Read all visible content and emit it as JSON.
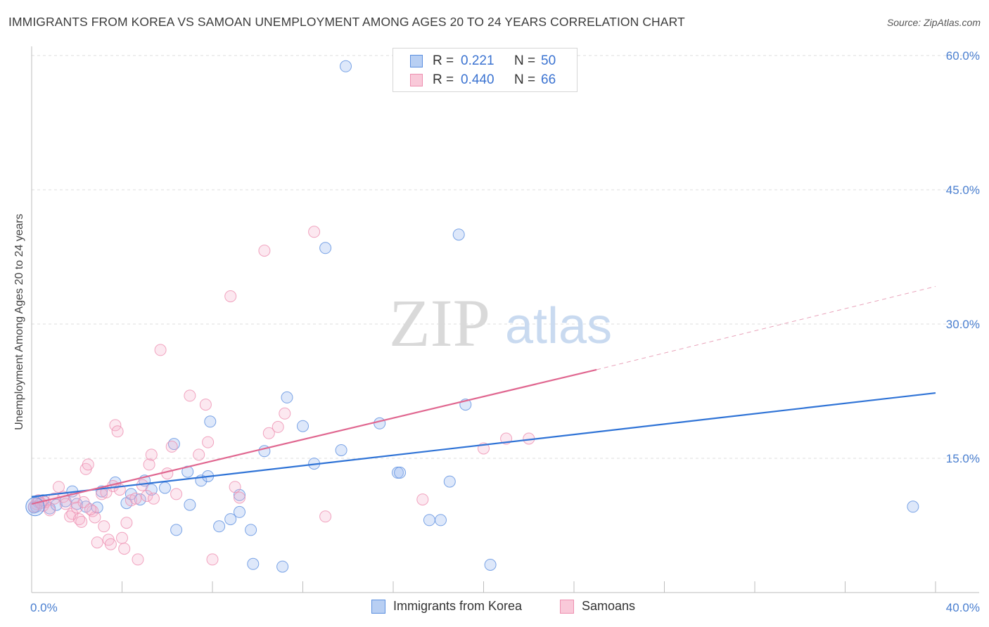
{
  "header": {
    "title": "IMMIGRANTS FROM KOREA VS SAMOAN UNEMPLOYMENT AMONG AGES 20 TO 24 YEARS CORRELATION CHART",
    "source": "Source: ZipAtlas.com"
  },
  "watermark": {
    "zip": "ZIP",
    "atlas": "atlas"
  },
  "legend": {
    "rows": [
      {
        "r_label": "R =",
        "r_value": "0.221",
        "n_label": "N =",
        "n_value": "50"
      },
      {
        "r_label": "R =",
        "r_value": "0.440",
        "n_label": "N =",
        "n_value": "66"
      }
    ],
    "series": [
      {
        "name": "Immigrants from Korea",
        "color": "#5b8fe0"
      },
      {
        "name": "Samoans",
        "color": "#ee8fb0"
      }
    ]
  },
  "chart_data": {
    "type": "scatter",
    "title": "IMMIGRANTS FROM KOREA VS SAMOAN UNEMPLOYMENT AMONG AGES 20 TO 24 YEARS CORRELATION CHART",
    "xlabel": "",
    "ylabel": "Unemployment Among Ages 20 to 24 years",
    "xlim": [
      0,
      40
    ],
    "ylim": [
      0,
      60
    ],
    "x_tick_labels": [
      "0.0%",
      "40.0%"
    ],
    "y_ticks": [
      15,
      30,
      45,
      60
    ],
    "y_tick_labels": [
      "15.0%",
      "30.0%",
      "45.0%",
      "60.0%"
    ],
    "grid": true,
    "series": [
      {
        "name": "Immigrants from Korea",
        "color": "#5b8fe0",
        "trend": {
          "x0": 0,
          "y0": 10.7,
          "x1": 40,
          "y1": 22.3
        },
        "points": [
          [
            0.2,
            9.6
          ],
          [
            0.3,
            10.1
          ],
          [
            0.5,
            10.3
          ],
          [
            0.8,
            9.4
          ],
          [
            1.1,
            9.8
          ],
          [
            1.5,
            10.2
          ],
          [
            1.8,
            11.3
          ],
          [
            2.0,
            9.9
          ],
          [
            2.4,
            9.6
          ],
          [
            2.9,
            9.5
          ],
          [
            3.1,
            11.3
          ],
          [
            3.7,
            12.3
          ],
          [
            4.2,
            10.0
          ],
          [
            4.4,
            11.0
          ],
          [
            4.8,
            10.4
          ],
          [
            5.0,
            12.5
          ],
          [
            5.3,
            11.5
          ],
          [
            5.9,
            11.7
          ],
          [
            6.3,
            16.6
          ],
          [
            6.4,
            7.0
          ],
          [
            6.9,
            13.5
          ],
          [
            7.0,
            9.8
          ],
          [
            7.5,
            12.5
          ],
          [
            7.8,
            13.0
          ],
          [
            7.9,
            19.1
          ],
          [
            8.3,
            7.4
          ],
          [
            8.8,
            8.2
          ],
          [
            9.2,
            9.0
          ],
          [
            9.2,
            10.9
          ],
          [
            9.7,
            7.0
          ],
          [
            9.8,
            3.2
          ],
          [
            10.3,
            15.8
          ],
          [
            11.1,
            2.9
          ],
          [
            11.3,
            21.8
          ],
          [
            12.0,
            18.6
          ],
          [
            12.5,
            14.4
          ],
          [
            13.0,
            38.5
          ],
          [
            13.7,
            15.9
          ],
          [
            13.9,
            58.8
          ],
          [
            15.4,
            18.9
          ],
          [
            16.2,
            13.4
          ],
          [
            16.3,
            13.4
          ],
          [
            17.6,
            8.1
          ],
          [
            18.1,
            8.1
          ],
          [
            18.5,
            12.4
          ],
          [
            18.9,
            40.0
          ],
          [
            19.2,
            21.0
          ],
          [
            20.3,
            3.1
          ],
          [
            39.0,
            9.6
          ],
          [
            0.1,
            9.5
          ]
        ]
      },
      {
        "name": "Samoans",
        "color": "#ee8fb0",
        "trend": {
          "x0": 0,
          "y0": 9.9,
          "x1": 25,
          "y1": 24.9,
          "dash_x1": 40,
          "dash_y1": 34.2
        },
        "points": [
          [
            0.2,
            9.9
          ],
          [
            0.3,
            10.3
          ],
          [
            0.5,
            9.7
          ],
          [
            0.6,
            10.1
          ],
          [
            0.8,
            9.2
          ],
          [
            1.0,
            10.5
          ],
          [
            1.2,
            11.8
          ],
          [
            1.4,
            10.7
          ],
          [
            1.5,
            9.9
          ],
          [
            1.7,
            8.5
          ],
          [
            1.8,
            8.8
          ],
          [
            2.0,
            9.5
          ],
          [
            2.1,
            8.2
          ],
          [
            2.2,
            7.9
          ],
          [
            2.3,
            10.1
          ],
          [
            2.4,
            13.8
          ],
          [
            2.5,
            14.3
          ],
          [
            2.7,
            9.1
          ],
          [
            2.8,
            8.4
          ],
          [
            2.9,
            5.6
          ],
          [
            3.1,
            11.0
          ],
          [
            3.2,
            7.4
          ],
          [
            3.3,
            11.2
          ],
          [
            3.4,
            5.9
          ],
          [
            3.5,
            5.4
          ],
          [
            3.6,
            11.9
          ],
          [
            3.7,
            18.7
          ],
          [
            3.8,
            18.0
          ],
          [
            3.9,
            11.5
          ],
          [
            4.0,
            6.1
          ],
          [
            4.1,
            4.9
          ],
          [
            4.2,
            7.8
          ],
          [
            4.4,
            10.3
          ],
          [
            4.6,
            10.5
          ],
          [
            4.7,
            3.7
          ],
          [
            4.9,
            12.0
          ],
          [
            5.1,
            10.8
          ],
          [
            5.2,
            14.3
          ],
          [
            5.3,
            15.4
          ],
          [
            5.4,
            10.5
          ],
          [
            5.7,
            27.1
          ],
          [
            6.0,
            13.3
          ],
          [
            6.2,
            16.3
          ],
          [
            6.4,
            11.0
          ],
          [
            7.0,
            22.0
          ],
          [
            7.4,
            15.4
          ],
          [
            7.7,
            21.0
          ],
          [
            7.8,
            16.8
          ],
          [
            8.0,
            3.7
          ],
          [
            8.8,
            33.1
          ],
          [
            9.0,
            11.8
          ],
          [
            9.2,
            10.6
          ],
          [
            10.3,
            38.2
          ],
          [
            10.5,
            17.8
          ],
          [
            10.9,
            18.5
          ],
          [
            11.2,
            20.0
          ],
          [
            12.5,
            40.3
          ],
          [
            13.0,
            8.5
          ],
          [
            17.3,
            10.4
          ],
          [
            20.0,
            16.1
          ],
          [
            21.0,
            17.2
          ],
          [
            22.0,
            17.2
          ],
          [
            0.1,
            9.6
          ],
          [
            0.4,
            10.0
          ],
          [
            1.9,
            10.6
          ],
          [
            2.6,
            9.3
          ]
        ]
      }
    ]
  }
}
